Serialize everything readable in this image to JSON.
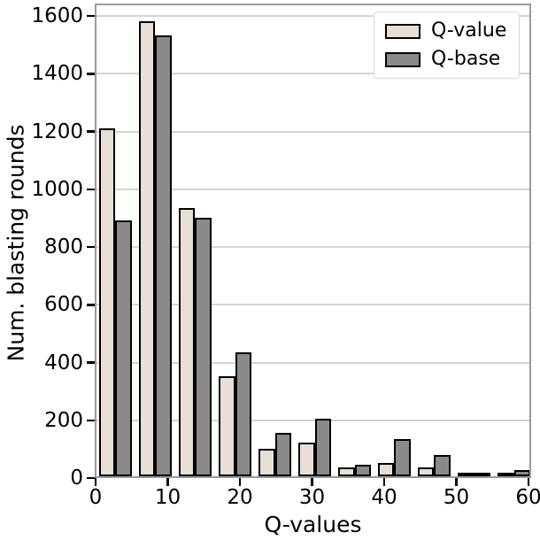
{
  "figure": {
    "background": "#ffffff"
  },
  "chart_data": {
    "type": "bar",
    "title": "",
    "xlabel": "Q-values",
    "ylabel": "Num. blasting rounds",
    "legend": {
      "position": "upper-right",
      "entries": [
        "Q-value",
        "Q-base"
      ]
    },
    "axes": {
      "xticks": [
        0,
        10,
        20,
        30,
        40,
        50,
        60
      ],
      "yticks": [
        0,
        200,
        400,
        600,
        800,
        1000,
        1200,
        1400,
        1600
      ],
      "xlim": [
        0,
        60.4
      ],
      "ylim": [
        0,
        1643
      ],
      "grid": "horizontal"
    },
    "bin_centers": [
      2.76,
      8.28,
      13.8,
      19.33,
      24.85,
      30.37,
      35.89,
      41.41,
      46.93,
      52.45,
      57.98
    ],
    "bar_width_units": 2.27,
    "series": [
      {
        "name": "Q-value",
        "fill": "#e7ded5",
        "edge": "#000000",
        "values": [
          1205,
          1575,
          930,
          345,
          95,
          115,
          30,
          45,
          30,
          5,
          10
        ]
      },
      {
        "name": "Q-base",
        "fill": "#8a8a8a",
        "edge": "#000000",
        "values": [
          885,
          1525,
          895,
          430,
          150,
          200,
          40,
          130,
          75,
          5,
          20
        ]
      }
    ],
    "colors": {
      "gridline": "#d4d4d4",
      "spine": "#9b9b9b",
      "tick": "#000000",
      "legend_border": "#d9d9d9",
      "background": "#ffffff"
    }
  }
}
